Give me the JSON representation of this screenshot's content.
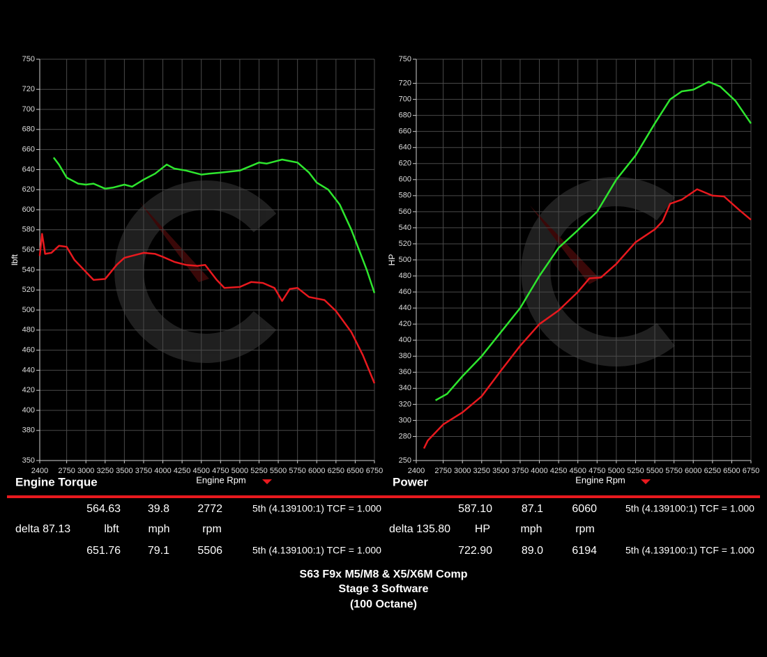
{
  "chart_data": [
    {
      "type": "line",
      "title": "Engine Torque",
      "x_label": "Engine Rpm",
      "y_label": "lbft",
      "xlim": [
        2400,
        6750
      ],
      "xticks": [
        2400,
        2750,
        3000,
        3250,
        3500,
        3750,
        4000,
        4250,
        4500,
        4750,
        5000,
        5250,
        5500,
        5750,
        6000,
        6250,
        6500,
        6750
      ],
      "ylim": [
        350,
        750
      ],
      "yticks": [
        350,
        380,
        400,
        420,
        440,
        460,
        480,
        500,
        520,
        540,
        560,
        580,
        600,
        620,
        640,
        660,
        680,
        700,
        720,
        750
      ],
      "grid": true,
      "series": [
        {
          "color": "#2ee62e",
          "x": [
            2580,
            2650,
            2750,
            2900,
            3000,
            3100,
            3250,
            3350,
            3500,
            3600,
            3750,
            3900,
            4050,
            4150,
            4300,
            4500,
            4600,
            4750,
            5000,
            5250,
            5350,
            5450,
            5550,
            5750,
            5900,
            6000,
            6150,
            6300,
            6450,
            6550,
            6650,
            6750
          ],
          "values": [
            652,
            645,
            632,
            626,
            625,
            626,
            621,
            622,
            625,
            623,
            630,
            636,
            645,
            641,
            639,
            635,
            636,
            637,
            639,
            647,
            646,
            648,
            650,
            647,
            637,
            627,
            620,
            605,
            580,
            560,
            540,
            517
          ]
        },
        {
          "color": "#e8191e",
          "x": [
            2400,
            2430,
            2470,
            2550,
            2650,
            2750,
            2850,
            3000,
            3100,
            3250,
            3400,
            3500,
            3600,
            3750,
            3900,
            4000,
            4150,
            4300,
            4450,
            4550,
            4700,
            4800,
            5000,
            5150,
            5300,
            5450,
            5550,
            5650,
            5750,
            5900,
            6100,
            6250,
            6450,
            6600,
            6750
          ],
          "values": [
            554,
            576,
            556,
            557,
            564,
            563,
            550,
            538,
            530,
            531,
            545,
            552,
            554,
            557,
            556,
            553,
            548,
            545,
            544,
            545,
            530,
            522,
            523,
            528,
            527,
            522,
            509,
            521,
            522,
            513,
            510,
            499,
            478,
            455,
            427
          ]
        }
      ],
      "readout_red": [
        "564.63",
        "39.8",
        "2772",
        "5th (4.139100:1) TCF = 1.000"
      ],
      "delta": "delta 87.13",
      "units": [
        "lbft",
        "mph",
        "rpm"
      ],
      "readout_green": [
        "651.76",
        "79.1",
        "5506",
        "5th (4.139100:1) TCF = 1.000"
      ]
    },
    {
      "type": "line",
      "title": "Power",
      "x_label": "Engine Rpm",
      "y_label": "HP",
      "xlim": [
        2400,
        6750
      ],
      "xticks": [
        2400,
        2750,
        3000,
        3250,
        3500,
        3750,
        4000,
        4250,
        4500,
        4750,
        5000,
        5250,
        5500,
        5750,
        6000,
        6250,
        6500,
        6750
      ],
      "ylim": [
        250,
        750
      ],
      "yticks": [
        250,
        280,
        300,
        320,
        340,
        360,
        380,
        400,
        420,
        440,
        460,
        480,
        500,
        520,
        540,
        560,
        580,
        600,
        620,
        640,
        660,
        680,
        700,
        720,
        750
      ],
      "grid": true,
      "series": [
        {
          "color": "#2ee62e",
          "x": [
            2650,
            2800,
            3000,
            3250,
            3500,
            3750,
            4000,
            4250,
            4500,
            4750,
            5000,
            5250,
            5500,
            5700,
            5850,
            6000,
            6200,
            6350,
            6550,
            6750
          ],
          "values": [
            325,
            333,
            355,
            380,
            410,
            440,
            480,
            515,
            537,
            560,
            600,
            630,
            670,
            700,
            710,
            712,
            722,
            716,
            698,
            670
          ]
        },
        {
          "color": "#e8191e",
          "x": [
            2500,
            2550,
            2750,
            3000,
            3250,
            3500,
            3750,
            4000,
            4250,
            4500,
            4650,
            4800,
            5000,
            5250,
            5500,
            5600,
            5700,
            5850,
            6050,
            6250,
            6400,
            6600,
            6750
          ],
          "values": [
            265,
            275,
            295,
            310,
            330,
            362,
            393,
            420,
            437,
            460,
            477,
            478,
            495,
            522,
            538,
            548,
            570,
            575,
            588,
            580,
            579,
            562,
            550
          ]
        }
      ],
      "readout_red": [
        "587.10",
        "87.1",
        "6060",
        "5th (4.139100:1) TCF = 1.000"
      ],
      "delta": "delta 135.80",
      "units": [
        "HP",
        "mph",
        "rpm"
      ],
      "readout_green": [
        "722.90",
        "89.0",
        "6194",
        "5th (4.139100:1) TCF = 1.000"
      ]
    }
  ],
  "caption": [
    "S63 F9x M5/M8 & X5/X6M Comp",
    "Stage 3 Software",
    "(100 Octane)"
  ]
}
